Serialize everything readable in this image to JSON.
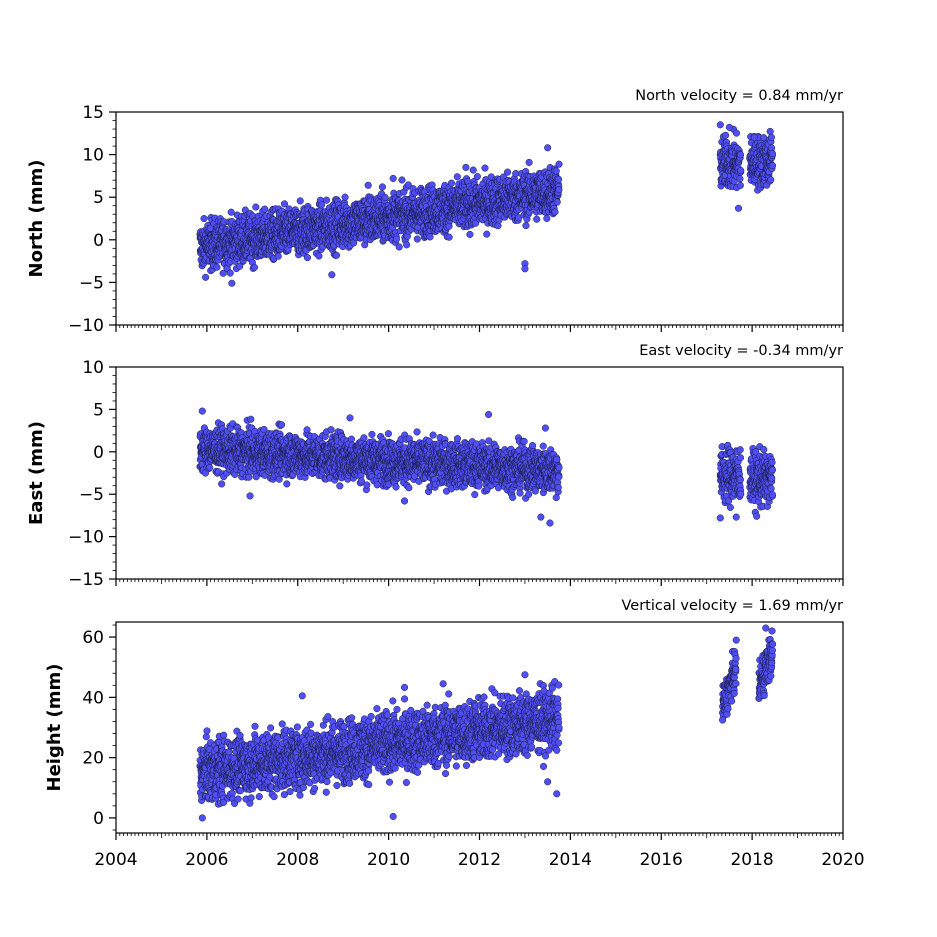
{
  "colors": {
    "marker_fill": "#4f4ff5",
    "marker_edge": "#1a1a40",
    "axes": "#000000",
    "background": "#ffffff"
  },
  "chart_data": [
    {
      "type": "scatter",
      "panel": "north",
      "title": "North velocity = 0.84 mm/yr",
      "xlabel": "",
      "ylabel": "North (mm)",
      "xlim": [
        2004,
        2020
      ],
      "ylim": [
        -10,
        15
      ],
      "xticks": [
        2004,
        2006,
        2008,
        2010,
        2012,
        2014,
        2016,
        2018,
        2020
      ],
      "xtick_labels_shown": false,
      "yticks": [
        -10,
        -5,
        0,
        5,
        10,
        15
      ],
      "ytick_labels": [
        "−10",
        "−5",
        "0",
        "5",
        "10",
        "15"
      ],
      "velocity_mm_per_yr": 0.84,
      "grid": false,
      "segments": [
        {
          "x_start": 2005.85,
          "x_end": 2013.75,
          "y_start": -0.8,
          "y_end": 5.8,
          "scatter": 1.4
        },
        {
          "x_start": 2017.3,
          "x_end": 2017.75,
          "y_start": 9.0,
          "y_end": 9.0,
          "scatter": 1.5
        },
        {
          "x_start": 2017.95,
          "x_end": 2018.45,
          "y_start": 9.0,
          "y_end": 9.4,
          "scatter": 1.5
        }
      ],
      "outliers": [
        {
          "x": 2013.0,
          "y": -2.8
        },
        {
          "x": 2013.0,
          "y": -3.4
        },
        {
          "x": 2006.55,
          "y": -5.1
        },
        {
          "x": 2008.75,
          "y": -4.1
        },
        {
          "x": 2017.3,
          "y": 13.5
        },
        {
          "x": 2017.5,
          "y": 13.2
        },
        {
          "x": 2018.05,
          "y": 12.0
        },
        {
          "x": 2017.7,
          "y": 3.7
        },
        {
          "x": 2013.5,
          "y": 10.8
        },
        {
          "x": 2010.1,
          "y": 7.2
        },
        {
          "x": 2009.55,
          "y": 6.4
        },
        {
          "x": 2011.7,
          "y": 8.5
        }
      ]
    },
    {
      "type": "scatter",
      "panel": "east",
      "title": "East velocity = -0.34 mm/yr",
      "xlabel": "",
      "ylabel": "East (mm)",
      "xlim": [
        2004,
        2020
      ],
      "ylim": [
        -15,
        10
      ],
      "xticks": [
        2004,
        2006,
        2008,
        2010,
        2012,
        2014,
        2016,
        2018,
        2020
      ],
      "xtick_labels_shown": false,
      "yticks": [
        -15,
        -10,
        -5,
        0,
        5,
        10
      ],
      "ytick_labels": [
        "−15",
        "−10",
        "−5",
        "0",
        "5",
        "10"
      ],
      "velocity_mm_per_yr": -0.34,
      "grid": false,
      "segments": [
        {
          "x_start": 2005.85,
          "x_end": 2013.75,
          "y_start": 0.3,
          "y_end": -2.2,
          "scatter": 1.3
        },
        {
          "x_start": 2017.3,
          "x_end": 2017.75,
          "y_start": -2.8,
          "y_end": -2.8,
          "scatter": 1.6
        },
        {
          "x_start": 2017.95,
          "x_end": 2018.45,
          "y_start": -3.2,
          "y_end": -3.2,
          "scatter": 1.5
        }
      ],
      "outliers": [
        {
          "x": 2005.9,
          "y": 4.8
        },
        {
          "x": 2006.95,
          "y": -5.2
        },
        {
          "x": 2009.15,
          "y": 4.0
        },
        {
          "x": 2012.2,
          "y": 4.4
        },
        {
          "x": 2013.35,
          "y": -7.7
        },
        {
          "x": 2013.55,
          "y": -8.4
        },
        {
          "x": 2017.3,
          "y": -7.8
        },
        {
          "x": 2017.65,
          "y": -7.7
        },
        {
          "x": 2018.1,
          "y": -7.6
        },
        {
          "x": 2010.35,
          "y": -5.8
        },
        {
          "x": 2013.45,
          "y": 2.8
        }
      ]
    },
    {
      "type": "scatter",
      "panel": "height",
      "title": "Vertical velocity = 1.69 mm/yr",
      "xlabel": "",
      "ylabel": "Height (mm)",
      "xlim": [
        2004,
        2020
      ],
      "ylim": [
        -5,
        65
      ],
      "xticks": [
        2004,
        2006,
        2008,
        2010,
        2012,
        2014,
        2016,
        2018,
        2020
      ],
      "xtick_labels": [
        "2004",
        "2006",
        "2008",
        "2010",
        "2012",
        "2014",
        "2016",
        "2018",
        "2020"
      ],
      "xtick_labels_shown": true,
      "yticks": [
        0,
        20,
        40,
        60
      ],
      "ytick_labels": [
        "0",
        "20",
        "40",
        "60"
      ],
      "velocity_mm_per_yr": 1.69,
      "grid": false,
      "segments": [
        {
          "x_start": 2005.85,
          "x_end": 2013.75,
          "y_start": 15.0,
          "y_end": 33.0,
          "scatter": 5.0
        },
        {
          "x_start": 2017.35,
          "x_end": 2017.65,
          "y_start": 37.0,
          "y_end": 50.0,
          "scatter": 3.0
        },
        {
          "x_start": 2018.15,
          "x_end": 2018.45,
          "y_start": 44.0,
          "y_end": 55.0,
          "scatter": 3.5
        }
      ],
      "outliers": [
        {
          "x": 2005.9,
          "y": 0.0
        },
        {
          "x": 2010.1,
          "y": 0.5
        },
        {
          "x": 2008.1,
          "y": 40.5
        },
        {
          "x": 2010.35,
          "y": 43.3
        },
        {
          "x": 2013.0,
          "y": 47.5
        },
        {
          "x": 2018.3,
          "y": 63.0
        },
        {
          "x": 2013.7,
          "y": 8.0
        },
        {
          "x": 2013.5,
          "y": 12.0
        },
        {
          "x": 2011.2,
          "y": 44.5
        },
        {
          "x": 2017.35,
          "y": 32.5
        }
      ]
    }
  ]
}
